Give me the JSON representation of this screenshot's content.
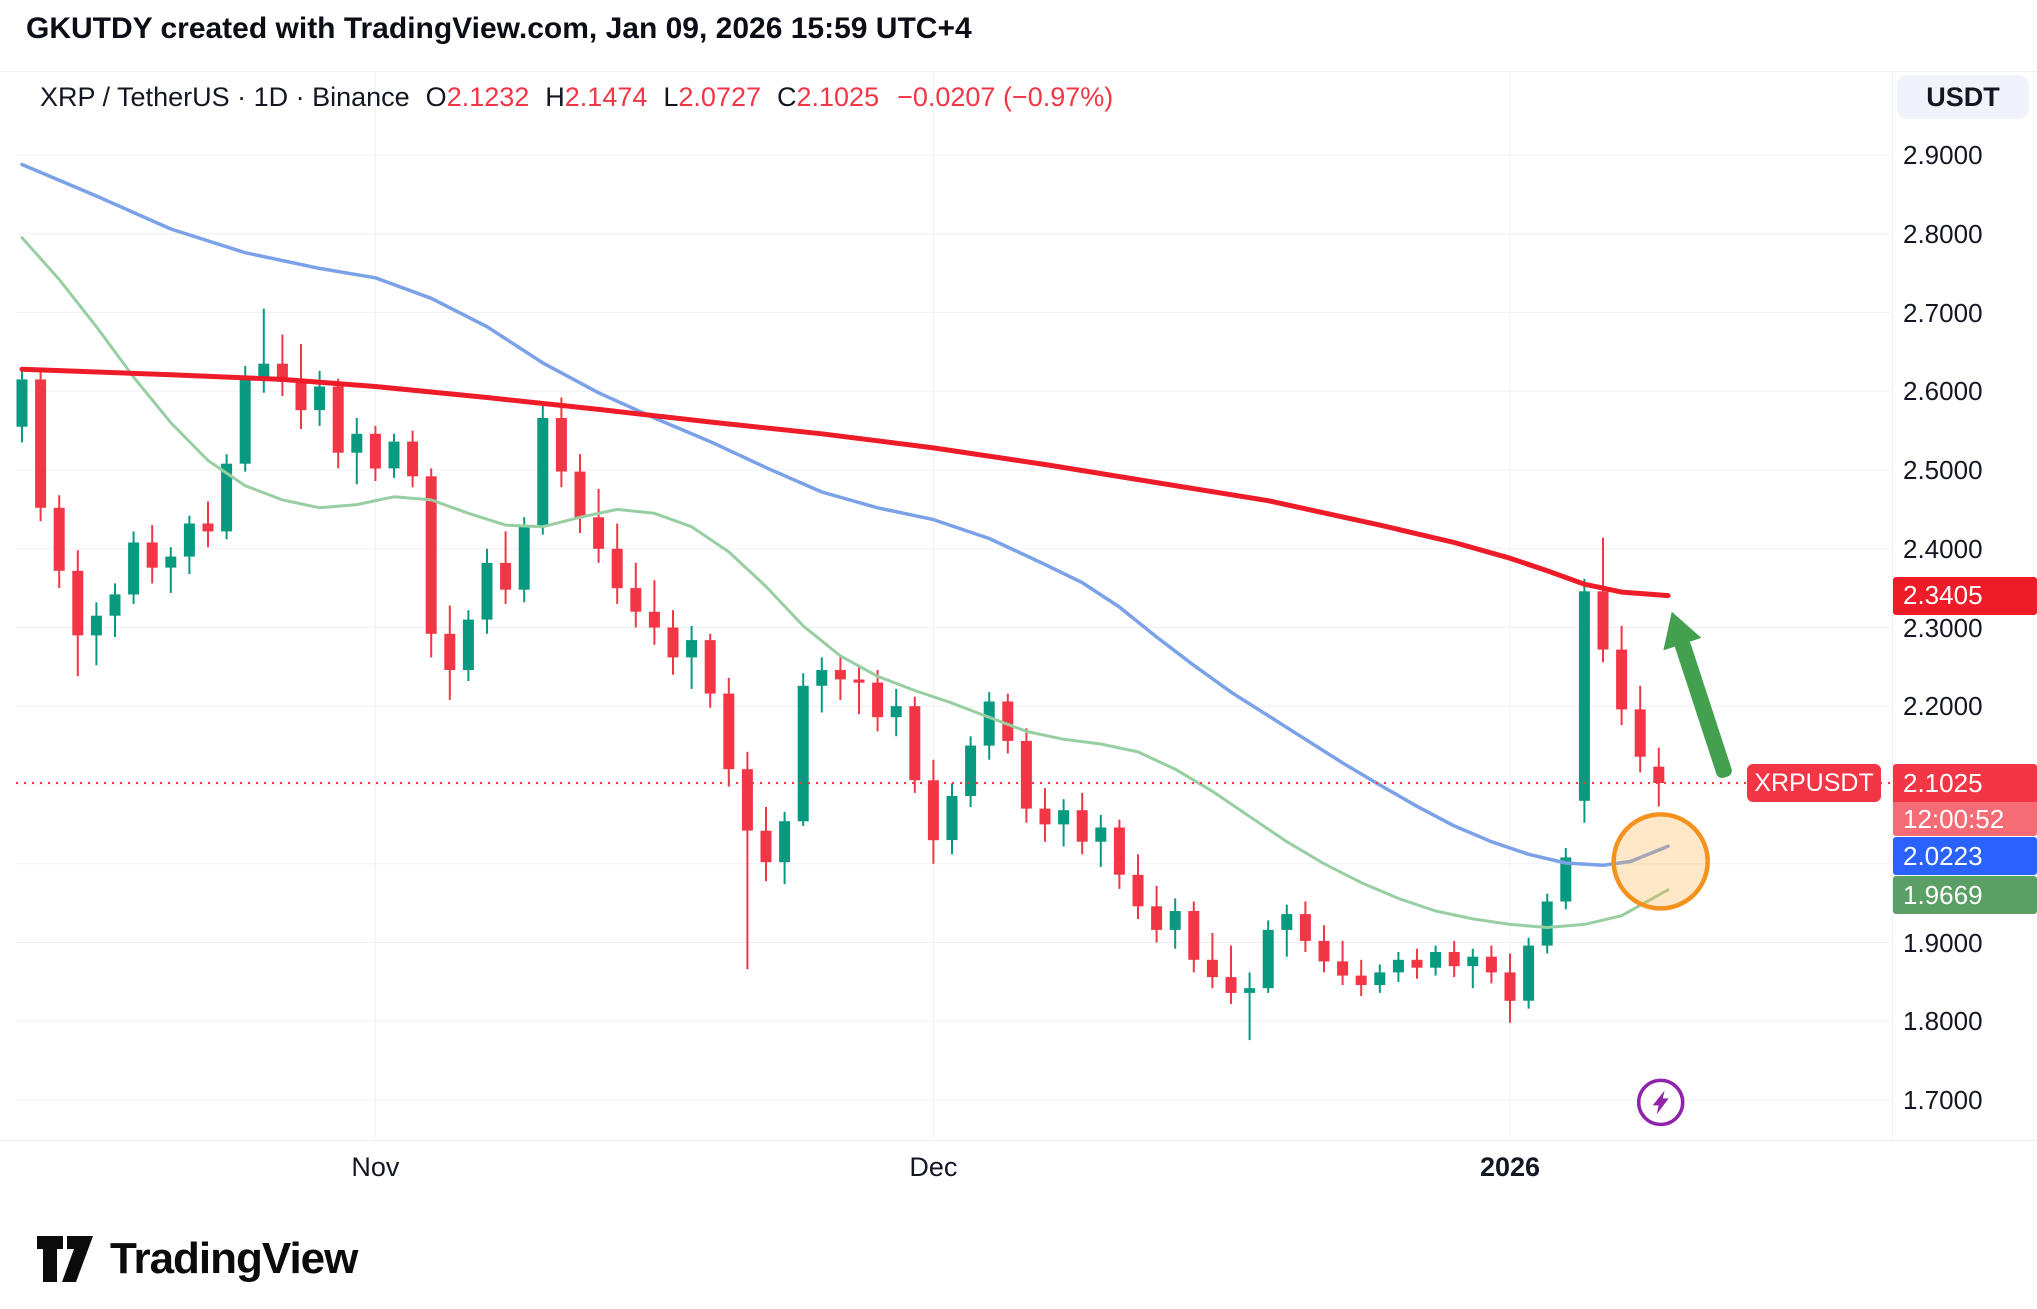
{
  "header": {
    "title": "GKUTDY created with TradingView.com, Jan 09, 2026 15:59 UTC+4"
  },
  "legend": {
    "symbol_text": "XRP / TetherUS · 1D · Binance",
    "o_label": "O",
    "o_value": "2.1232",
    "h_label": "H",
    "h_value": "2.1474",
    "l_label": "L",
    "l_value": "2.0727",
    "c_label": "C",
    "c_value": "2.1025",
    "change_text": "−0.0207 (−0.97%)"
  },
  "toolbar": {
    "currency_label": "USDT"
  },
  "axis": {
    "price_ticks": [
      "2.9000",
      "2.8000",
      "2.7000",
      "2.6000",
      "2.5000",
      "2.4000",
      "2.3000",
      "2.2000",
      "1.9000",
      "1.8000",
      "1.7000"
    ],
    "price_labels": [
      {
        "name": "ma-red-value",
        "text": "2.3405",
        "price": 2.3405,
        "bg": "#ee1c29",
        "fg": "#ffffff"
      },
      {
        "name": "last-price",
        "text": "2.1025",
        "price": 2.1025,
        "bg": "#f23645",
        "fg": "#ffffff",
        "tag": "XRPUSDT",
        "countdown": "12:00:52",
        "countdown_bg": "#f56c76"
      },
      {
        "name": "ma-blue-value",
        "text": "2.0223",
        "price": 2.0223,
        "bg": "#2962ff",
        "fg": "#ffffff"
      },
      {
        "name": "ma-green-value",
        "text": "1.9669",
        "price": 1.9669,
        "bg": "#5b9e66",
        "fg": "#ffffff"
      }
    ],
    "time_ticks": [
      {
        "label": "Nov",
        "index": 19,
        "bold": false
      },
      {
        "label": "Dec",
        "index": 49,
        "bold": false
      },
      {
        "label": "2026",
        "index": 80,
        "bold": true
      }
    ]
  },
  "footer": {
    "brand": "TradingView"
  },
  "chart_data": {
    "type": "candlestick",
    "symbol": "XRPUSDT",
    "pair": "XRP / TetherUS",
    "interval": "1D",
    "exchange": "Binance",
    "up_color": "#089981",
    "down_color": "#f23645",
    "ylim": [
      1.66,
      2.96
    ],
    "grid": true,
    "price_gridlines": [
      2.9,
      2.8,
      2.7,
      2.6,
      2.5,
      2.4,
      2.3,
      2.2,
      2.1,
      2.0,
      1.9,
      1.8,
      1.7
    ],
    "ohlc_current": {
      "open": 2.1232,
      "high": 2.1474,
      "low": 2.0727,
      "close": 2.1025,
      "change": -0.0207,
      "change_pct": -0.97
    },
    "current_price_line": {
      "value": 2.1025,
      "color": "#f23645",
      "style": "dotted"
    },
    "candles": [
      [
        "2025-10-13",
        2.555,
        2.625,
        2.535,
        2.615
      ],
      [
        "2025-10-14",
        2.615,
        2.628,
        2.435,
        2.452
      ],
      [
        "2025-10-15",
        2.452,
        2.468,
        2.35,
        2.372
      ],
      [
        "2025-10-16",
        2.372,
        2.398,
        2.238,
        2.29
      ],
      [
        "2025-10-17",
        2.29,
        2.332,
        2.252,
        2.315
      ],
      [
        "2025-10-18",
        2.315,
        2.356,
        2.288,
        2.342
      ],
      [
        "2025-10-19",
        2.342,
        2.422,
        2.33,
        2.408
      ],
      [
        "2025-10-20",
        2.408,
        2.43,
        2.356,
        2.376
      ],
      [
        "2025-10-21",
        2.376,
        2.402,
        2.344,
        2.39
      ],
      [
        "2025-10-22",
        2.39,
        2.442,
        2.368,
        2.432
      ],
      [
        "2025-10-23",
        2.432,
        2.46,
        2.402,
        2.422
      ],
      [
        "2025-10-24",
        2.422,
        2.52,
        2.412,
        2.508
      ],
      [
        "2025-10-25",
        2.508,
        2.632,
        2.498,
        2.618
      ],
      [
        "2025-10-26",
        2.618,
        2.705,
        2.598,
        2.635
      ],
      [
        "2025-10-27",
        2.635,
        2.672,
        2.594,
        2.612
      ],
      [
        "2025-10-28",
        2.612,
        2.66,
        2.552,
        2.576
      ],
      [
        "2025-10-29",
        2.576,
        2.626,
        2.556,
        2.606
      ],
      [
        "2025-10-30",
        2.606,
        2.616,
        2.502,
        2.522
      ],
      [
        "2025-10-31",
        2.522,
        2.566,
        2.482,
        2.546
      ],
      [
        "2025-11-01",
        2.546,
        2.556,
        2.486,
        2.502
      ],
      [
        "2025-11-02",
        2.502,
        2.546,
        2.49,
        2.536
      ],
      [
        "2025-11-03",
        2.536,
        2.55,
        2.478,
        2.492
      ],
      [
        "2025-11-04",
        2.492,
        2.502,
        2.262,
        2.292
      ],
      [
        "2025-11-05",
        2.292,
        2.328,
        2.208,
        2.246
      ],
      [
        "2025-11-06",
        2.246,
        2.322,
        2.232,
        2.31
      ],
      [
        "2025-11-07",
        2.31,
        2.4,
        2.292,
        2.382
      ],
      [
        "2025-11-08",
        2.382,
        2.422,
        2.33,
        2.348
      ],
      [
        "2025-11-09",
        2.348,
        2.44,
        2.332,
        2.428
      ],
      [
        "2025-11-10",
        2.428,
        2.586,
        2.418,
        2.566
      ],
      [
        "2025-11-11",
        2.566,
        2.592,
        2.478,
        2.498
      ],
      [
        "2025-11-12",
        2.498,
        2.52,
        2.42,
        2.44
      ],
      [
        "2025-11-13",
        2.44,
        2.476,
        2.382,
        2.4
      ],
      [
        "2025-11-14",
        2.4,
        2.432,
        2.33,
        2.35
      ],
      [
        "2025-11-15",
        2.35,
        2.382,
        2.3,
        2.32
      ],
      [
        "2025-11-16",
        2.32,
        2.36,
        2.278,
        2.3
      ],
      [
        "2025-11-17",
        2.3,
        2.322,
        2.24,
        2.262
      ],
      [
        "2025-11-18",
        2.262,
        2.302,
        2.222,
        2.284
      ],
      [
        "2025-11-19",
        2.284,
        2.292,
        2.198,
        2.216
      ],
      [
        "2025-11-20",
        2.216,
        2.236,
        2.098,
        2.12
      ],
      [
        "2025-11-21",
        2.12,
        2.142,
        1.866,
        2.042
      ],
      [
        "2025-11-22",
        2.042,
        2.072,
        1.978,
        2.002
      ],
      [
        "2025-11-23",
        2.002,
        2.066,
        1.974,
        2.054
      ],
      [
        "2025-11-24",
        2.054,
        2.242,
        2.048,
        2.226
      ],
      [
        "2025-11-25",
        2.226,
        2.262,
        2.192,
        2.246
      ],
      [
        "2025-11-26",
        2.246,
        2.262,
        2.208,
        2.234
      ],
      [
        "2025-11-27",
        2.234,
        2.252,
        2.19,
        2.23
      ],
      [
        "2025-11-28",
        2.23,
        2.246,
        2.168,
        2.186
      ],
      [
        "2025-11-29",
        2.186,
        2.222,
        2.162,
        2.2
      ],
      [
        "2025-11-30",
        2.2,
        2.212,
        2.09,
        2.106
      ],
      [
        "2025-12-01",
        2.106,
        2.132,
        2.0,
        2.03
      ],
      [
        "2025-12-02",
        2.03,
        2.102,
        2.012,
        2.086
      ],
      [
        "2025-12-03",
        2.086,
        2.162,
        2.072,
        2.15
      ],
      [
        "2025-12-04",
        2.15,
        2.218,
        2.132,
        2.206
      ],
      [
        "2025-12-05",
        2.206,
        2.216,
        2.14,
        2.156
      ],
      [
        "2025-12-06",
        2.156,
        2.172,
        2.052,
        2.07
      ],
      [
        "2025-12-07",
        2.07,
        2.096,
        2.028,
        2.05
      ],
      [
        "2025-12-08",
        2.05,
        2.082,
        2.022,
        2.068
      ],
      [
        "2025-12-09",
        2.068,
        2.09,
        2.012,
        2.028
      ],
      [
        "2025-12-10",
        2.028,
        2.062,
        1.996,
        2.046
      ],
      [
        "2025-12-11",
        2.046,
        2.056,
        1.968,
        1.986
      ],
      [
        "2025-12-12",
        1.986,
        2.012,
        1.93,
        1.946
      ],
      [
        "2025-12-13",
        1.946,
        1.972,
        1.9,
        1.916
      ],
      [
        "2025-12-14",
        1.916,
        1.956,
        1.892,
        1.94
      ],
      [
        "2025-12-15",
        1.94,
        1.952,
        1.862,
        1.878
      ],
      [
        "2025-12-16",
        1.878,
        1.912,
        1.842,
        1.856
      ],
      [
        "2025-12-17",
        1.856,
        1.896,
        1.822,
        1.836
      ],
      [
        "2025-12-18",
        1.836,
        1.862,
        1.776,
        1.842
      ],
      [
        "2025-12-19",
        1.842,
        1.928,
        1.836,
        1.916
      ],
      [
        "2025-12-20",
        1.916,
        1.948,
        1.882,
        1.936
      ],
      [
        "2025-12-21",
        1.936,
        1.952,
        1.888,
        1.902
      ],
      [
        "2025-12-22",
        1.902,
        1.922,
        1.862,
        1.876
      ],
      [
        "2025-12-23",
        1.876,
        1.902,
        1.846,
        1.858
      ],
      [
        "2025-12-24",
        1.858,
        1.878,
        1.832,
        1.846
      ],
      [
        "2025-12-25",
        1.846,
        1.872,
        1.836,
        1.862
      ],
      [
        "2025-12-26",
        1.862,
        1.888,
        1.85,
        1.878
      ],
      [
        "2025-12-27",
        1.878,
        1.892,
        1.854,
        1.868
      ],
      [
        "2025-12-28",
        1.868,
        1.896,
        1.858,
        1.888
      ],
      [
        "2025-12-29",
        1.888,
        1.902,
        1.856,
        1.87
      ],
      [
        "2025-12-30",
        1.87,
        1.892,
        1.842,
        1.882
      ],
      [
        "2025-12-31",
        1.882,
        1.896,
        1.848,
        1.862
      ],
      [
        "2026-01-01",
        1.862,
        1.886,
        1.798,
        1.826
      ],
      [
        "2026-01-02",
        1.826,
        1.906,
        1.816,
        1.896
      ],
      [
        "2026-01-03",
        1.896,
        1.962,
        1.886,
        1.952
      ],
      [
        "2026-01-04",
        1.952,
        2.02,
        1.942,
        2.008
      ],
      [
        "2026-01-05",
        2.08,
        2.362,
        2.052,
        2.346
      ],
      [
        "2026-01-06",
        2.346,
        2.414,
        2.256,
        2.272
      ],
      [
        "2026-01-07",
        2.272,
        2.302,
        2.176,
        2.196
      ],
      [
        "2026-01-08",
        2.196,
        2.226,
        2.116,
        2.136
      ],
      [
        "2026-01-09",
        2.1232,
        2.1474,
        2.0727,
        2.1025
      ]
    ],
    "overlays": [
      {
        "name": "ma-short-green-line",
        "color": "#98cfa2",
        "width": 3,
        "last_value": 1.9669,
        "points": [
          [
            0,
            2.795
          ],
          [
            2,
            2.742
          ],
          [
            4,
            2.682
          ],
          [
            6,
            2.618
          ],
          [
            8,
            2.56
          ],
          [
            10,
            2.512
          ],
          [
            12,
            2.48
          ],
          [
            14,
            2.462
          ],
          [
            16,
            2.452
          ],
          [
            18,
            2.456
          ],
          [
            20,
            2.466
          ],
          [
            22,
            2.462
          ],
          [
            24,
            2.445
          ],
          [
            26,
            2.43
          ],
          [
            28,
            2.428
          ],
          [
            30,
            2.44
          ],
          [
            32,
            2.45
          ],
          [
            34,
            2.445
          ],
          [
            36,
            2.428
          ],
          [
            38,
            2.396
          ],
          [
            40,
            2.352
          ],
          [
            42,
            2.302
          ],
          [
            44,
            2.264
          ],
          [
            46,
            2.238
          ],
          [
            48,
            2.22
          ],
          [
            50,
            2.204
          ],
          [
            52,
            2.186
          ],
          [
            54,
            2.168
          ],
          [
            56,
            2.158
          ],
          [
            58,
            2.152
          ],
          [
            60,
            2.142
          ],
          [
            62,
            2.12
          ],
          [
            64,
            2.092
          ],
          [
            66,
            2.06
          ],
          [
            68,
            2.028
          ],
          [
            70,
            2.0
          ],
          [
            72,
            1.976
          ],
          [
            74,
            1.956
          ],
          [
            76,
            1.94
          ],
          [
            78,
            1.93
          ],
          [
            80,
            1.923
          ],
          [
            82,
            1.919
          ],
          [
            84,
            1.923
          ],
          [
            86,
            1.934
          ],
          [
            88.5,
            1.9669
          ]
        ]
      },
      {
        "name": "ma-mid-blue-line",
        "color": "#7ba2e8",
        "width": 3.5,
        "last_value": 2.0223,
        "points": [
          [
            0,
            2.888
          ],
          [
            4,
            2.848
          ],
          [
            8,
            2.806
          ],
          [
            12,
            2.776
          ],
          [
            16,
            2.756
          ],
          [
            19,
            2.744
          ],
          [
            22,
            2.718
          ],
          [
            25,
            2.682
          ],
          [
            28,
            2.636
          ],
          [
            31,
            2.598
          ],
          [
            34,
            2.566
          ],
          [
            37,
            2.536
          ],
          [
            40,
            2.503
          ],
          [
            43,
            2.472
          ],
          [
            46,
            2.452
          ],
          [
            49,
            2.437
          ],
          [
            52,
            2.413
          ],
          [
            55,
            2.38
          ],
          [
            57,
            2.357
          ],
          [
            59,
            2.326
          ],
          [
            61,
            2.288
          ],
          [
            63,
            2.252
          ],
          [
            65,
            2.218
          ],
          [
            67,
            2.188
          ],
          [
            69,
            2.158
          ],
          [
            71,
            2.128
          ],
          [
            73,
            2.1
          ],
          [
            75,
            2.073
          ],
          [
            77,
            2.048
          ],
          [
            79,
            2.028
          ],
          [
            81,
            2.012
          ],
          [
            83,
            2.001
          ],
          [
            85,
            1.998
          ],
          [
            86.5,
            2.003
          ],
          [
            88.5,
            2.0223
          ]
        ]
      },
      {
        "name": "ma-long-red-line",
        "color": "#ee1c29",
        "width": 5,
        "last_value": 2.3405,
        "points": [
          [
            0,
            2.628
          ],
          [
            8,
            2.621
          ],
          [
            14,
            2.615
          ],
          [
            19,
            2.606
          ],
          [
            25,
            2.592
          ],
          [
            31,
            2.577
          ],
          [
            37,
            2.561
          ],
          [
            43,
            2.546
          ],
          [
            49,
            2.528
          ],
          [
            55,
            2.507
          ],
          [
            61,
            2.484
          ],
          [
            67,
            2.461
          ],
          [
            73,
            2.43
          ],
          [
            77,
            2.408
          ],
          [
            80,
            2.388
          ],
          [
            82,
            2.372
          ],
          [
            84,
            2.355
          ],
          [
            86,
            2.345
          ],
          [
            88.5,
            2.3405
          ]
        ]
      }
    ],
    "annotations": [
      {
        "type": "arrow",
        "name": "up-arrow-drawing",
        "color": "#42a04f",
        "from": {
          "i": 91.6,
          "price": 2.11
        },
        "to": {
          "i": 88.7,
          "price": 2.32
        }
      },
      {
        "type": "circle",
        "name": "highlight-circle-drawing",
        "stroke": "#f5921e",
        "fill": "rgba(255,179,71,0.30)",
        "center": {
          "i": 88.1,
          "price": 2.003
        },
        "r": 47
      },
      {
        "type": "bolt",
        "name": "flash-boost-icon",
        "stroke": "#8e24aa",
        "center": {
          "i": 88.1,
          "price": 1.697
        },
        "r": 22
      }
    ]
  }
}
